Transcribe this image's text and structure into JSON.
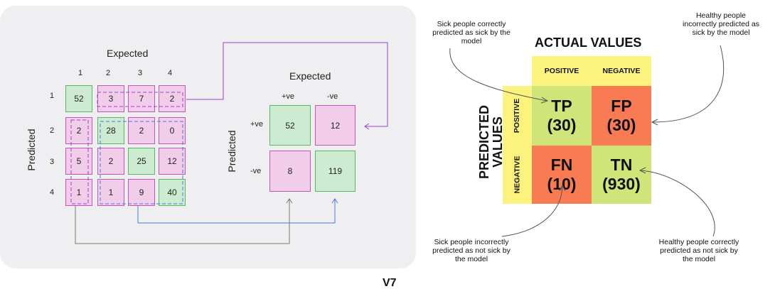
{
  "left": {
    "matrix4": {
      "expected_label": "Expected",
      "predicted_label": "Predicted",
      "col_indices": [
        "1",
        "2",
        "3",
        "4"
      ],
      "row_indices": [
        "1",
        "2",
        "3",
        "4"
      ],
      "rows": [
        [
          "52",
          "3",
          "7",
          "2"
        ],
        [
          "2",
          "28",
          "2",
          "0"
        ],
        [
          "5",
          "2",
          "25",
          "12"
        ],
        [
          "1",
          "1",
          "9",
          "40"
        ]
      ]
    },
    "matrix2": {
      "expected_label": "Expected",
      "predicted_label": "Predicted",
      "col_labels": [
        "+ve",
        "-ve"
      ],
      "row_labels": [
        "+ve",
        "-ve"
      ],
      "rows": [
        [
          "52",
          "12"
        ],
        [
          "8",
          "119"
        ]
      ]
    },
    "colors": {
      "pink_fill": "#f1cdea",
      "pink_border": "#c158b8",
      "green_fill": "#cdebd0",
      "green_border": "#5ab864",
      "purple_line": "#9b3fd1",
      "blue_line": "#4a78e0",
      "gray_line": "#777777"
    }
  },
  "right": {
    "actual_values": "ACTUAL VALUES",
    "predicted_values": [
      "PREDICTED",
      "VALUES"
    ],
    "col_positive": "POSITIVE",
    "col_negative": "NEGATIVE",
    "row_positive": "POSITIVE",
    "row_negative": "NEGATIVE",
    "cells": {
      "tp": {
        "label": "TP",
        "value": "(30)"
      },
      "fp": {
        "label": "FP",
        "value": "(30)"
      },
      "fn": {
        "label": "FN",
        "value": "(10)"
      },
      "tn": {
        "label": "TN",
        "value": "(930)"
      }
    },
    "annotations": {
      "tp": [
        "Sick people correctly",
        "predicted as sick by the",
        "model"
      ],
      "fp": [
        "Healthy people",
        "incorrectly predicted as",
        "sick by the model"
      ],
      "fn": [
        "Sick people incorrectly",
        "predicted as not sick by",
        "the model"
      ],
      "tn": [
        "Healthy people correctly",
        "predicted as not sick by",
        "the model"
      ]
    },
    "colors": {
      "green": "#cfe57a",
      "red": "#f97b54",
      "yellow": "#fbf37d"
    }
  },
  "logo": "V7"
}
